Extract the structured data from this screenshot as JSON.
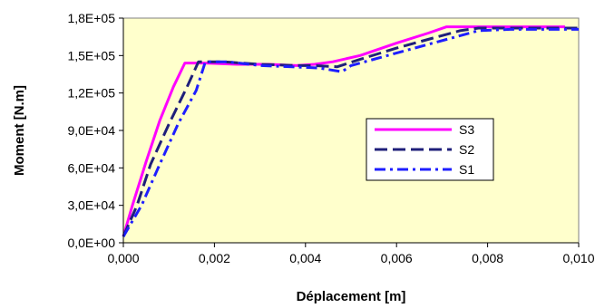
{
  "chart_data": {
    "type": "line",
    "title": "",
    "xlabel": "Déplacement [m]",
    "ylabel": "Moment [N.m]",
    "xlim": [
      0,
      0.01
    ],
    "ylim": [
      0,
      180000
    ],
    "x_ticks": [
      "0,000",
      "0,002",
      "0,004",
      "0,006",
      "0,008",
      "0,010"
    ],
    "y_ticks": [
      "0,0E+00",
      "3,0E+04",
      "6,0E+04",
      "9,0E+04",
      "1,2E+05",
      "1,5E+05",
      "1,8E+05"
    ],
    "grid": false,
    "legend_position": "center-right",
    "plot_background": "#FFFFCC",
    "series": [
      {
        "name": "S3",
        "color": "#FF00FF",
        "dash": "solid",
        "points": [
          [
            0,
            5000
          ],
          [
            0.0002,
            30000
          ],
          [
            0.0005,
            65000
          ],
          [
            0.0008,
            98000
          ],
          [
            0.0011,
            125000
          ],
          [
            0.00135,
            144000
          ],
          [
            0.0018,
            144000
          ],
          [
            0.0025,
            143000
          ],
          [
            0.0032,
            143000
          ],
          [
            0.0038,
            142000
          ],
          [
            0.0042,
            143000
          ],
          [
            0.0046,
            145000
          ],
          [
            0.0052,
            150000
          ],
          [
            0.006,
            160000
          ],
          [
            0.0067,
            168000
          ],
          [
            0.0071,
            173000
          ],
          [
            0.0075,
            173000
          ],
          [
            0.0085,
            173000
          ],
          [
            0.0097,
            173000
          ]
        ]
      },
      {
        "name": "S2",
        "color": "#1F1F7A",
        "dash": "dashed",
        "points": [
          [
            0,
            5000
          ],
          [
            0.0003,
            30000
          ],
          [
            0.0006,
            63000
          ],
          [
            0.001,
            95000
          ],
          [
            0.0014,
            125000
          ],
          [
            0.00165,
            145000
          ],
          [
            0.0022,
            145000
          ],
          [
            0.003,
            143000
          ],
          [
            0.0038,
            142000
          ],
          [
            0.0042,
            142000
          ],
          [
            0.0047,
            141000
          ],
          [
            0.0052,
            147000
          ],
          [
            0.006,
            156000
          ],
          [
            0.0068,
            164000
          ],
          [
            0.0074,
            170000
          ],
          [
            0.0078,
            172000
          ],
          [
            0.009,
            172000
          ],
          [
            0.01,
            172000
          ]
        ]
      },
      {
        "name": "S1",
        "color": "#1E1EFF",
        "dash": "dash-dot",
        "points": [
          [
            0,
            5000
          ],
          [
            0.0004,
            30000
          ],
          [
            0.0008,
            63000
          ],
          [
            0.0012,
            95000
          ],
          [
            0.0016,
            122000
          ],
          [
            0.0018,
            145000
          ],
          [
            0.0023,
            145000
          ],
          [
            0.003,
            142000
          ],
          [
            0.0037,
            141000
          ],
          [
            0.0043,
            140000
          ],
          [
            0.0048,
            137000
          ],
          [
            0.005,
            142000
          ],
          [
            0.0058,
            150000
          ],
          [
            0.0066,
            158000
          ],
          [
            0.0073,
            165000
          ],
          [
            0.0078,
            170000
          ],
          [
            0.0085,
            171000
          ],
          [
            0.01,
            171000
          ]
        ]
      }
    ]
  }
}
